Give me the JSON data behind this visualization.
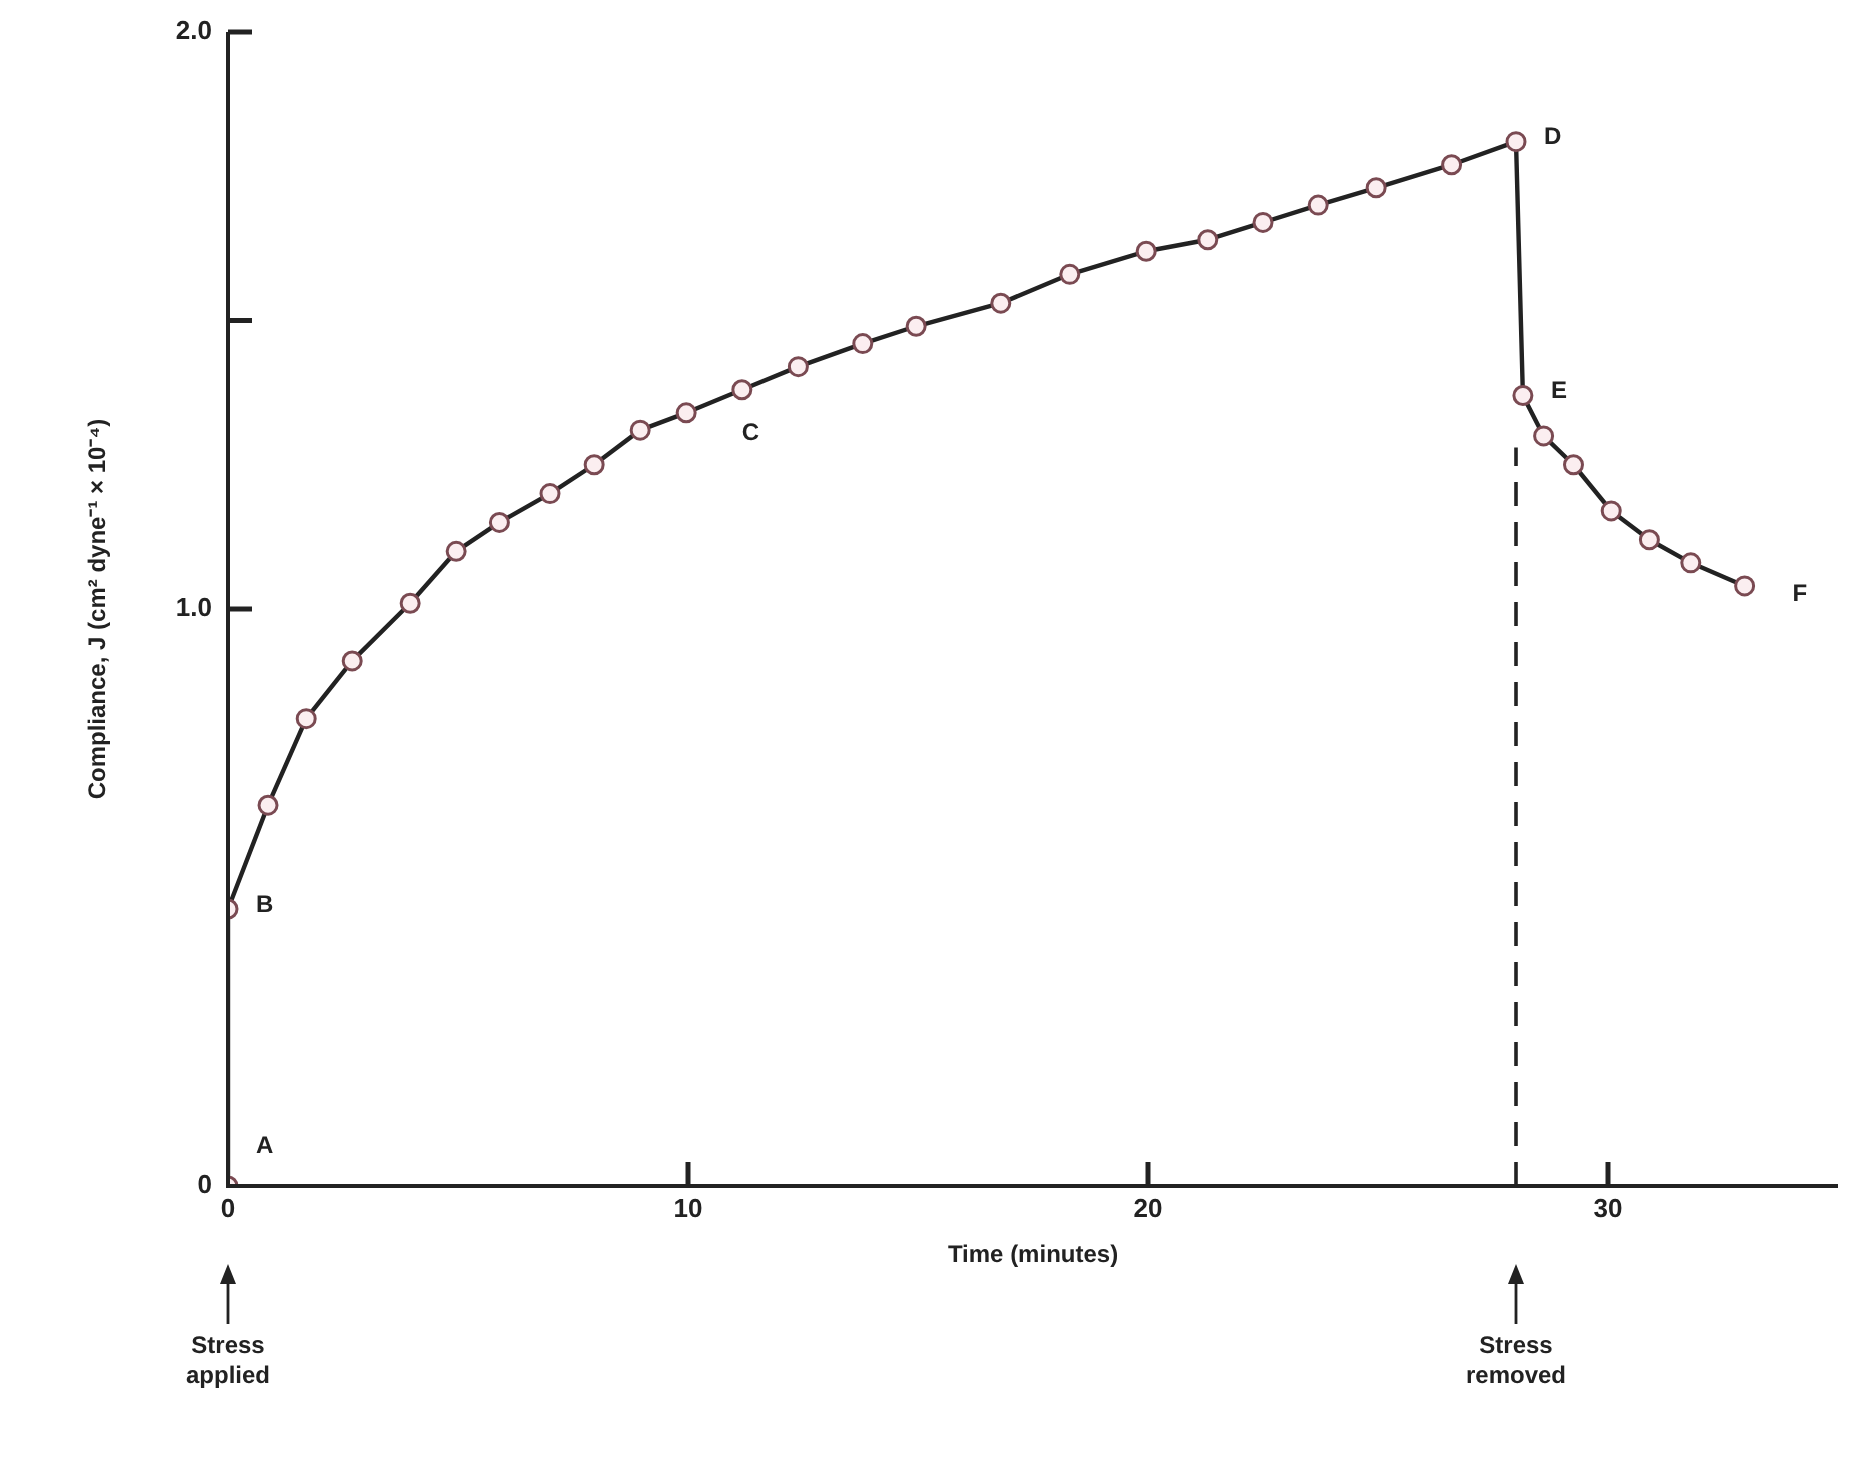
{
  "chart_data": {
    "type": "line",
    "xlabel": "Time (minutes)",
    "ylabel": "Compliance, J (cm² dyne⁻¹ × 10⁻⁴)",
    "xlim": [
      0,
      35
    ],
    "xticks": [
      0,
      10,
      20,
      30
    ],
    "ylim": [
      0,
      2.0
    ],
    "yticks": [
      0,
      {
        "value": 1,
        "label": "1.0"
      },
      {
        "value": 1.5,
        "label": null
      },
      {
        "value": 2,
        "label": "2.0"
      }
    ],
    "grid": false,
    "legend": false,
    "marker": "circle",
    "line_style": "solid",
    "series": [
      {
        "color": "#222222",
        "x": [
          0,
          0,
          0.87,
          1.7,
          2.7,
          3.96,
          4.96,
          5.9,
          7.0,
          7.96,
          8.96,
          9.96,
          11.17,
          12.4,
          13.8,
          14.96,
          16.8,
          18.3,
          19.96,
          21.3,
          22.5,
          23.7,
          24.96,
          26.6,
          28.0,
          28.15,
          28.6,
          29.25,
          30.07,
          30.9,
          31.8,
          32.97
        ],
        "values": [
          0,
          0.48,
          0.66,
          0.81,
          0.91,
          1.01,
          1.1,
          1.15,
          1.2,
          1.25,
          1.31,
          1.34,
          1.38,
          1.42,
          1.46,
          1.49,
          1.53,
          1.58,
          1.62,
          1.64,
          1.67,
          1.7,
          1.73,
          1.77,
          1.81,
          1.37,
          1.3,
          1.25,
          1.17,
          1.12,
          1.08,
          1.04
        ]
      }
    ],
    "ref_lines": [
      {
        "axis": "x",
        "value": 28,
        "label": "Stress removed",
        "line_style": "dashed"
      }
    ],
    "annotations": [
      {
        "text": "A",
        "x": 0,
        "y": 0
      },
      {
        "text": "B",
        "x": 0,
        "y": 0.48
      },
      {
        "text": "C",
        "x": 11.17,
        "y": 1.38
      },
      {
        "text": "D",
        "x": 28.0,
        "y": 1.81
      },
      {
        "text": "E",
        "x": 28.15,
        "y": 1.37
      },
      {
        "text": "F",
        "x": 32.97,
        "y": 1.04
      },
      "Stress applied"
    ]
  }
}
